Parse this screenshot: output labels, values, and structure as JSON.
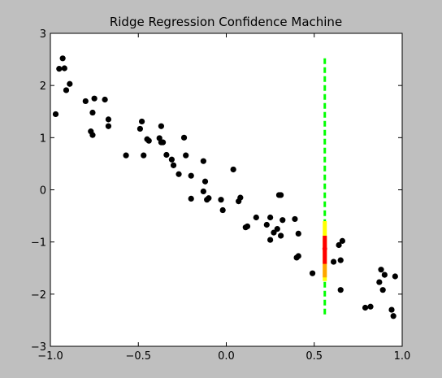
{
  "figure": {
    "background_color": "#bfbfbf",
    "plot_background_color": "#ffffff"
  },
  "chart_data": {
    "type": "scatter",
    "title": "Ridge Regression Confidence Machine",
    "xlabel": "",
    "ylabel": "",
    "xlim": [
      -1.0,
      1.0
    ],
    "ylim": [
      -3,
      3
    ],
    "x_ticks": [
      -1.0,
      -0.5,
      0.0,
      0.5,
      1.0
    ],
    "x_tick_labels": [
      "−1.0",
      "−0.5",
      "0.0",
      "0.5",
      "1.0"
    ],
    "y_ticks": [
      -3,
      -2,
      -1,
      0,
      1,
      2,
      3
    ],
    "y_tick_labels": [
      "−3",
      "−2",
      "−1",
      "0",
      "1",
      "2",
      "3"
    ],
    "grid": false,
    "legend": "none",
    "points": {
      "color": "#000000",
      "x": [
        -0.97,
        -0.95,
        -0.93,
        -0.92,
        -0.91,
        -0.89,
        -0.8,
        -0.77,
        -0.76,
        -0.76,
        -0.75,
        -0.69,
        -0.67,
        -0.67,
        -0.57,
        -0.49,
        -0.48,
        -0.47,
        -0.45,
        -0.44,
        -0.38,
        -0.37,
        -0.37,
        -0.36,
        -0.34,
        -0.31,
        -0.3,
        -0.27,
        -0.24,
        -0.23,
        -0.2,
        -0.2,
        -0.13,
        -0.13,
        -0.12,
        -0.11,
        -0.1,
        -0.03,
        -0.02,
        0.04,
        0.07,
        0.08,
        0.11,
        0.12,
        0.17,
        0.23,
        0.25,
        0.25,
        0.27,
        0.29,
        0.3,
        0.31,
        0.31,
        0.32,
        0.39,
        0.4,
        0.41,
        0.41,
        0.49,
        0.61,
        0.64,
        0.65,
        0.65,
        0.66,
        0.79,
        0.82,
        0.87,
        0.88,
        0.89,
        0.9,
        0.94,
        0.95,
        0.96
      ],
      "y": [
        1.45,
        2.32,
        2.52,
        2.33,
        1.91,
        2.03,
        1.7,
        1.12,
        1.48,
        1.05,
        1.75,
        1.73,
        1.35,
        1.22,
        0.66,
        1.17,
        1.31,
        0.66,
        0.97,
        0.94,
        0.99,
        0.91,
        1.22,
        0.91,
        0.67,
        0.58,
        0.47,
        0.3,
        1.0,
        0.66,
        -0.17,
        0.27,
        0.55,
        -0.03,
        0.16,
        -0.19,
        -0.16,
        -0.19,
        -0.39,
        0.39,
        -0.22,
        -0.15,
        -0.72,
        -0.7,
        -0.53,
        -0.67,
        -0.96,
        -0.53,
        -0.82,
        -0.75,
        -0.1,
        -0.1,
        -0.88,
        -0.58,
        -0.56,
        -1.3,
        -1.27,
        -0.84,
        -1.6,
        -1.38,
        -1.06,
        -1.35,
        -1.92,
        -0.98,
        -2.26,
        -2.24,
        -1.77,
        -1.53,
        -1.92,
        -1.63,
        -2.3,
        -2.42,
        -1.66
      ]
    },
    "prediction": {
      "x": 0.56,
      "point_estimate": -1.13,
      "intervals": [
        {
          "level": "outer",
          "style": "dashed",
          "color": "#00ff00",
          "lower": -2.42,
          "upper": 2.52
        },
        {
          "level": "middle",
          "style": "solid",
          "color": "#ffff00",
          "lower": -1.75,
          "upper": -0.6
        },
        {
          "level": "inner-1",
          "style": "solid",
          "color": "#ffa500",
          "lower": -1.68,
          "upper": -0.9
        },
        {
          "level": "inner-2",
          "style": "solid",
          "color": "#ff0000",
          "lower": -1.42,
          "upper": -0.88
        }
      ]
    }
  }
}
